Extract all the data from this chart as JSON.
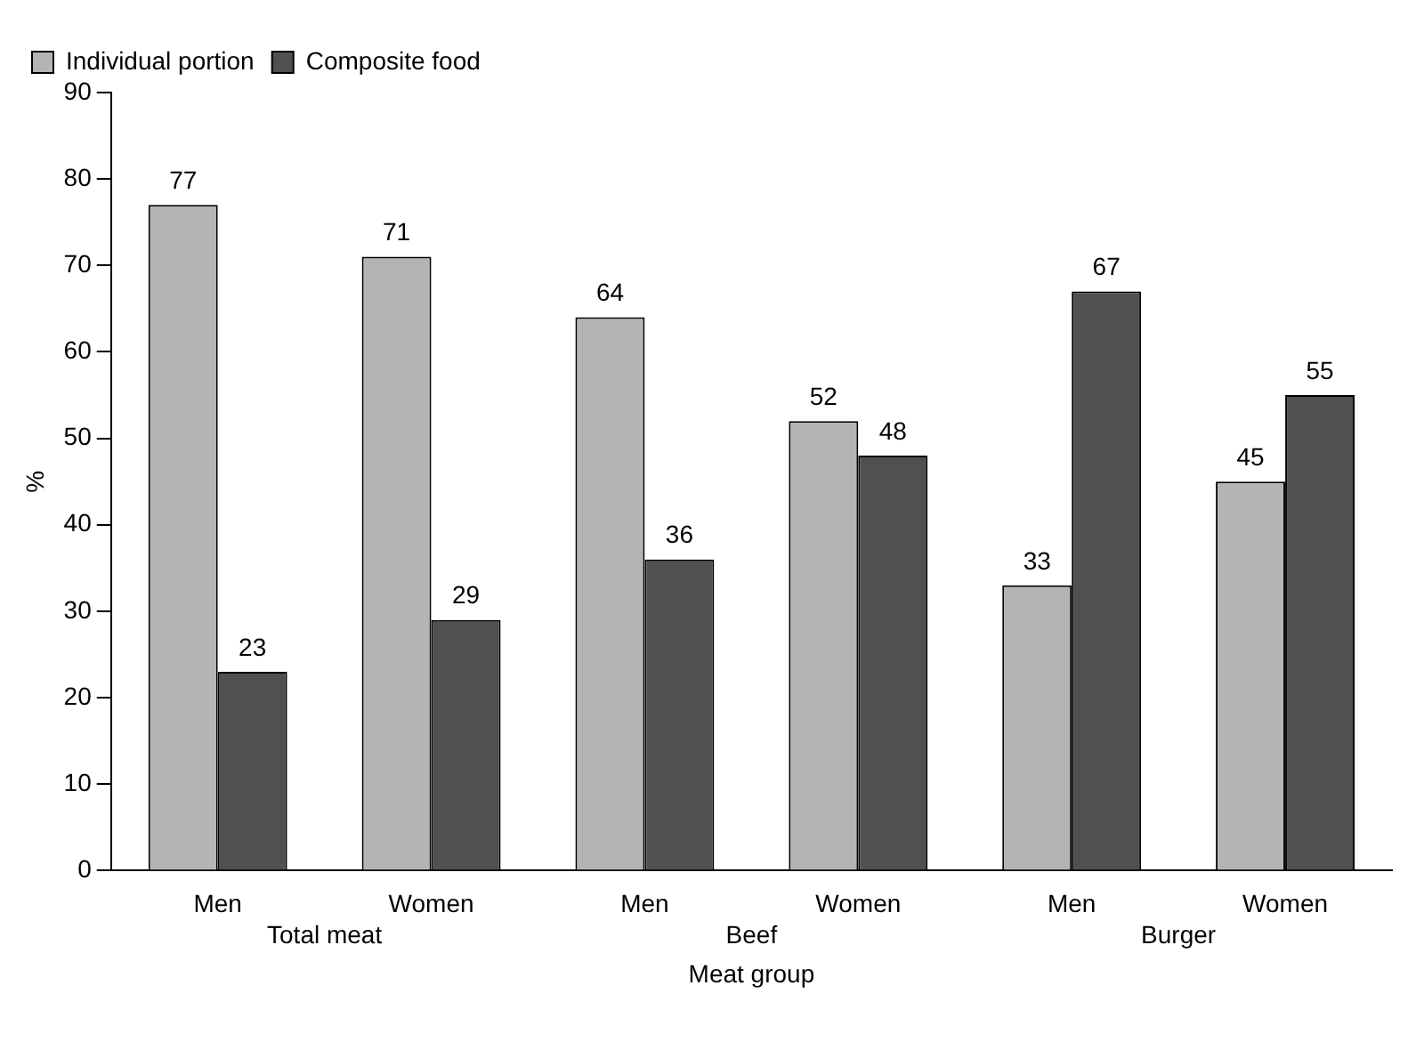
{
  "chart_data": {
    "type": "bar",
    "xlabel": "Meat group",
    "ylabel": "%",
    "categories": [
      "Men",
      "Women",
      "Men",
      "Women",
      "Men",
      "Women"
    ],
    "series": [
      {
        "name": "Individual portion",
        "color": "#b4b4b4",
        "values": [
          77,
          71,
          64,
          52,
          33,
          45
        ]
      },
      {
        "name": "Composite food",
        "color": "#505050",
        "values": [
          23,
          29,
          36,
          48,
          67,
          55
        ]
      }
    ],
    "annotations": [
      "Total meat",
      "Beef",
      "Burger"
    ],
    "ylim": [
      0,
      90
    ],
    "yticks": [
      0,
      10,
      20,
      30,
      40,
      50,
      60,
      70,
      80,
      90
    ],
    "data_labels": true,
    "grid": false,
    "legend": "top left"
  }
}
